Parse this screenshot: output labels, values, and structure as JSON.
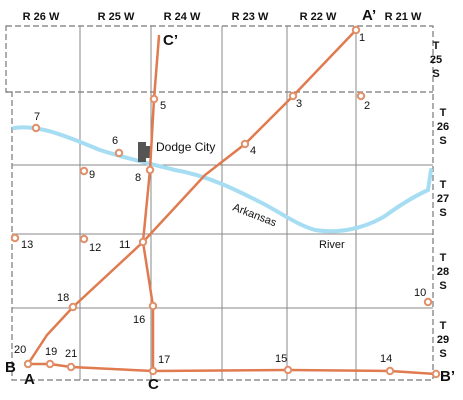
{
  "range_labels": [
    "R 26 W",
    "R 25 W",
    "R 24 W",
    "R 23 W",
    "R 22 W",
    "R 21 W"
  ],
  "township_labels": [
    {
      "t": "T",
      "n": "25",
      "s": "S"
    },
    {
      "t": "T",
      "n": "26",
      "s": "S"
    },
    {
      "t": "T",
      "n": "27",
      "s": "S"
    },
    {
      "t": "T",
      "n": "28",
      "s": "S"
    },
    {
      "t": "T",
      "n": "29",
      "s": "S"
    }
  ],
  "wells": [
    "1",
    "2",
    "3",
    "4",
    "5",
    "6",
    "7",
    "8",
    "9",
    "10",
    "11",
    "12",
    "13",
    "14",
    "15",
    "16",
    "17",
    "18",
    "19",
    "20",
    "21"
  ],
  "section_endpoints": {
    "a": "A",
    "a_prime": "A’",
    "b": "B",
    "b_prime": "B’",
    "c": "C",
    "c_prime": "C’"
  },
  "city": "Dodge City",
  "river_words": [
    "Arkansas",
    "River"
  ],
  "colors": {
    "section_line": "#e07a4f",
    "well_outline": "#e0906a",
    "river": "#a6ddf2",
    "city": "#555555",
    "grid": "#777777"
  }
}
